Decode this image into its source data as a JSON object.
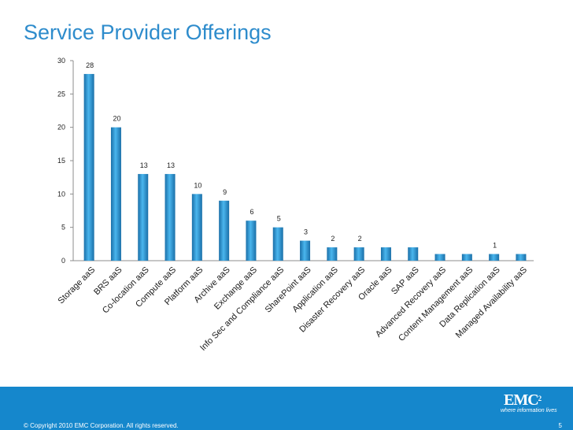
{
  "page": {
    "title": "Service Provider Offerings",
    "copyright": "© Copyright 2010 EMC Corporation. All rights reserved.",
    "page_number": "5",
    "logo_text": "EMC",
    "logo_superscript": "2",
    "logo_tagline": "where information lives"
  },
  "colors": {
    "title": "#2e8ccc",
    "bar_light": "#4ab6ee",
    "bar_dark": "#1a6fa8",
    "footer": "#1587cc"
  },
  "chart_data": {
    "type": "bar",
    "title": "Service Provider Offerings",
    "xlabel": "",
    "ylabel": "",
    "ylim": [
      0,
      30
    ],
    "yticks": [
      0,
      5,
      10,
      15,
      20,
      25,
      30
    ],
    "grid": false,
    "categories": [
      "Storage aaS",
      "BRS aaS",
      "Co-location aaS",
      "Compute aaS",
      "Platform aaS",
      "Archive aaS",
      "Exchange aaS",
      "Info Sec and Compliance aaS",
      "SharePoint aaS",
      "Application aaS",
      "Disaster Recovery aaS",
      "Oracle aaS",
      "SAP aaS",
      "Advanced Recovery aaS",
      "Content Management aaS",
      "Data Replication aaS",
      "Managed Availability aaS"
    ],
    "values": [
      28,
      20,
      13,
      13,
      10,
      9,
      6,
      5,
      3,
      2,
      2,
      2,
      2,
      1,
      1,
      1,
      1
    ],
    "data_labels": [
      "28",
      "20",
      "13",
      "13",
      "10",
      "9",
      "6",
      "5",
      "3",
      "2",
      "2",
      "",
      "",
      "",
      "",
      "1",
      ""
    ]
  }
}
